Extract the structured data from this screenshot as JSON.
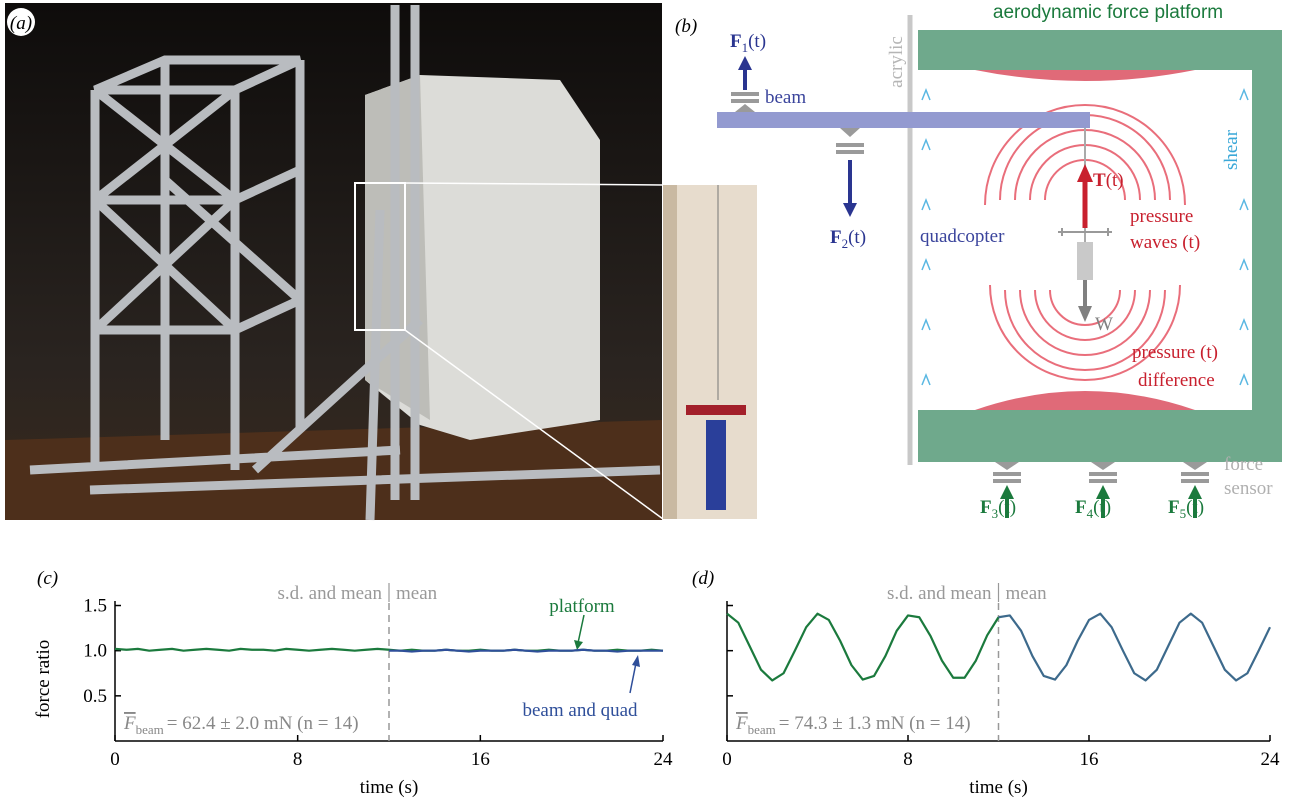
{
  "figure": {
    "a": {
      "label": "(a)"
    },
    "b": {
      "label": "(b)",
      "title": "aerodynamic force platform",
      "acrylic": "acrylic",
      "beam": "beam",
      "shear": "shear",
      "quadcopter": "quadcopter",
      "thrust": {
        "symbol": "T",
        "arg": "(t)"
      },
      "weight": "W",
      "pressure_waves": [
        "pressure",
        "waves (t)"
      ],
      "pressure_difference": [
        "pressure (t)",
        "difference"
      ],
      "force_sensor": [
        "force",
        "sensor"
      ],
      "forces": [
        {
          "symbol": "F",
          "sub": "1",
          "arg": "(t)"
        },
        {
          "symbol": "F",
          "sub": "2",
          "arg": "(t)"
        },
        {
          "symbol": "F",
          "sub": "3",
          "arg": "(t)"
        },
        {
          "symbol": "F",
          "sub": "4",
          "arg": "(t)"
        },
        {
          "symbol": "F",
          "sub": "5",
          "arg": "(t)"
        }
      ]
    }
  },
  "chart_data": [
    {
      "type": "line",
      "panel_label": "(c)",
      "xlabel": "time (s)",
      "ylabel": "force ratio",
      "xlim": [
        0,
        24
      ],
      "xticks": [
        0,
        8,
        16,
        24
      ],
      "ylim": [
        0,
        1.55
      ],
      "yticks": [
        0.5,
        {
          "value": 1,
          "label": "1.0"
        },
        1.5
      ],
      "ytick_labels": true,
      "divider_x": 12,
      "annotations": {
        "left": "s.d. and mean",
        "right": "mean"
      },
      "stat": {
        "symbol": "F",
        "sub": "beam",
        "text": "= 62.4 ± 2.0 mN (n = 14)"
      },
      "x": [
        0,
        0.5,
        1,
        1.5,
        2,
        2.5,
        3,
        3.5,
        4,
        4.5,
        5,
        5.5,
        6,
        6.5,
        7,
        7.5,
        8,
        8.5,
        9,
        9.5,
        10,
        10.5,
        11,
        11.5,
        12,
        12.5,
        13,
        13.5,
        14,
        14.5,
        15,
        15.5,
        16,
        16.5,
        17,
        17.5,
        18,
        18.5,
        19,
        19.5,
        20,
        20.5,
        21,
        21.5,
        22,
        22.5,
        23,
        23.5,
        24
      ],
      "series": [
        {
          "name": "platform",
          "color": "#1b7a3d",
          "values": [
            1.02,
            1.01,
            1.02,
            1.0,
            1.01,
            1.02,
            1.0,
            1.01,
            1.02,
            1.01,
            1.0,
            1.02,
            1.01,
            1.01,
            1.0,
            1.02,
            1.01,
            1.0,
            1.01,
            1.02,
            1.01,
            1.0,
            1.01,
            1.02,
            1.01,
            1.0,
            1.01,
            1.0,
            1.0,
            1.01,
            1.0,
            1.0,
            1.01,
            1.0,
            1.0,
            1.01,
            1.0,
            1.0,
            1.01,
            1.0,
            1.0,
            1.01,
            1.0,
            1.0,
            1.01,
            1.0,
            1.0,
            1.01,
            1.0
          ]
        },
        {
          "name": "beam and quad",
          "color": "#2f4f9a",
          "values": [
            null,
            null,
            null,
            null,
            null,
            null,
            null,
            null,
            null,
            null,
            null,
            null,
            null,
            null,
            null,
            null,
            null,
            null,
            null,
            null,
            null,
            null,
            null,
            null,
            1.0,
            1.0,
            0.99,
            1.0,
            1.0,
            1.01,
            1.0,
            0.99,
            1.0,
            1.0,
            1.0,
            1.01,
            1.0,
            0.99,
            1.0,
            1.0,
            1.0,
            1.01,
            1.0,
            1.0,
            0.99,
            1.0,
            1.0,
            1.0,
            1.0
          ]
        }
      ]
    },
    {
      "type": "line",
      "panel_label": "(d)",
      "xlabel": "time (s)",
      "xlim": [
        0,
        24
      ],
      "xticks": [
        0,
        8,
        16,
        24
      ],
      "ylim": [
        0,
        1.55
      ],
      "yticks": [
        0.5,
        1,
        1.5
      ],
      "ytick_labels": false,
      "divider_x": 12,
      "annotations": {
        "left": "s.d. and mean",
        "right": "mean"
      },
      "stat": {
        "symbol": "F",
        "sub": "beam",
        "text": "= 74.3 ± 1.3 mN (n = 14)"
      },
      "x": [
        0,
        0.5,
        1,
        1.5,
        2,
        2.5,
        3,
        3.5,
        4,
        4.5,
        5,
        5.5,
        6,
        6.5,
        7,
        7.5,
        8,
        8.5,
        9,
        9.5,
        10,
        10.5,
        11,
        11.5,
        12,
        12.5,
        13,
        13.5,
        14,
        14.5,
        15,
        15.5,
        16,
        16.5,
        17,
        17.5,
        18,
        18.5,
        19,
        19.5,
        20,
        20.5,
        21,
        21.5,
        22,
        22.5,
        23,
        23.5,
        24
      ],
      "series": [
        {
          "color": "#1b7a3d",
          "values": [
            1.41,
            1.31,
            1.05,
            0.79,
            0.67,
            0.75,
            1.0,
            1.26,
            1.41,
            1.34,
            1.11,
            0.84,
            0.68,
            0.72,
            0.94,
            1.22,
            1.39,
            1.37,
            1.16,
            0.89,
            0.7,
            0.7,
            0.89,
            1.17,
            1.37,
            null,
            null,
            null,
            null,
            null,
            null,
            null,
            null,
            null,
            null,
            null,
            null,
            null,
            null,
            null,
            null,
            null,
            null,
            null,
            null,
            null,
            null,
            null,
            null
          ]
        },
        {
          "color": "#3d6a8c",
          "values": [
            null,
            null,
            null,
            null,
            null,
            null,
            null,
            null,
            null,
            null,
            null,
            null,
            null,
            null,
            null,
            null,
            null,
            null,
            null,
            null,
            null,
            null,
            null,
            null,
            1.37,
            1.39,
            1.22,
            0.94,
            0.72,
            0.68,
            0.84,
            1.11,
            1.34,
            1.41,
            1.26,
            1.0,
            0.75,
            0.67,
            0.79,
            1.05,
            1.31,
            1.41,
            1.31,
            1.05,
            0.79,
            0.67,
            0.75,
            1.0,
            1.26
          ]
        }
      ]
    }
  ]
}
